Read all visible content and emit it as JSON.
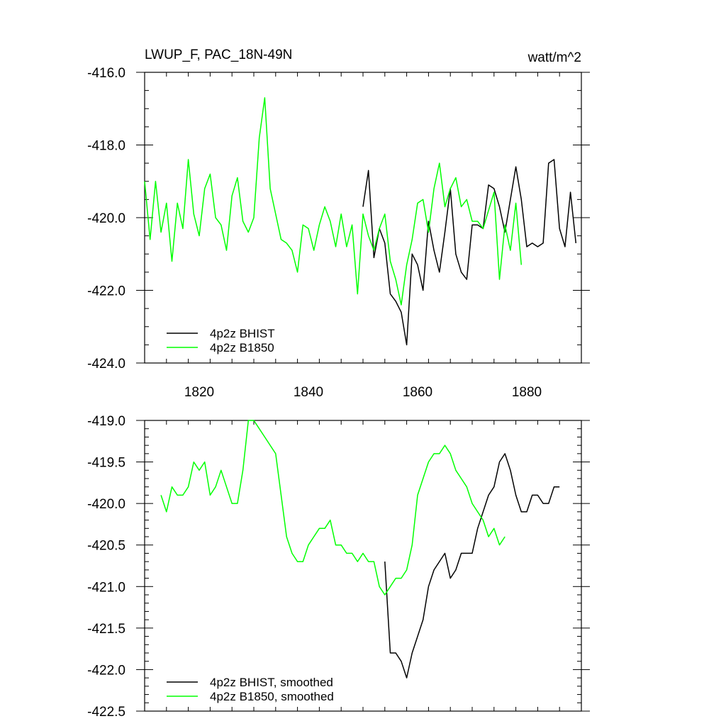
{
  "header": {
    "title": "LWUP_F, PAC_18N-49N",
    "units": "watt/m^2"
  },
  "chart_data": [
    {
      "type": "line",
      "title": "LWUP_F, PAC_18N-49N",
      "units": "watt/m^2",
      "xlim": [
        1810,
        1890
      ],
      "ylim": [
        -424.0,
        -416.0
      ],
      "x_ticks": [
        1820,
        1840,
        1860,
        1880
      ],
      "x_tick_labels": [
        "1820",
        "1840",
        "1860",
        "1880"
      ],
      "y_ticks": [
        -424.0,
        -422.0,
        -420.0,
        -418.0,
        -416.0
      ],
      "y_tick_labels": [
        "-424.0",
        "-422.0",
        "-420.0",
        "-418.0",
        "-416.0"
      ],
      "legend_position": "bottom-left",
      "series": [
        {
          "name": "4p2z BHIST",
          "color": "#000000",
          "x": [
            1850,
            1851,
            1852,
            1853,
            1854,
            1855,
            1856,
            1857,
            1858,
            1859,
            1860,
            1861,
            1862,
            1863,
            1864,
            1865,
            1866,
            1867,
            1868,
            1869,
            1870,
            1871,
            1872,
            1873,
            1874,
            1875,
            1876,
            1877,
            1878,
            1879,
            1880,
            1881,
            1882,
            1883,
            1884,
            1885,
            1886,
            1887,
            1888,
            1889
          ],
          "values": [
            -419.7,
            -418.7,
            -421.1,
            -420.3,
            -420.7,
            -422.1,
            -422.3,
            -422.6,
            -423.5,
            -421.0,
            -421.3,
            -422.0,
            -420.1,
            -420.9,
            -421.5,
            -420.4,
            -419.2,
            -421.0,
            -421.5,
            -421.7,
            -420.2,
            -420.2,
            -420.3,
            -419.1,
            -419.2,
            -419.7,
            -420.4,
            -419.5,
            -418.6,
            -419.5,
            -420.8,
            -420.7,
            -420.8,
            -420.7,
            -418.5,
            -418.4,
            -420.3,
            -420.8,
            -419.3,
            -420.7
          ]
        },
        {
          "name": "4p2z B1850",
          "color": "#00ff00",
          "x": [
            1810,
            1811,
            1812,
            1813,
            1814,
            1815,
            1816,
            1817,
            1818,
            1819,
            1820,
            1821,
            1822,
            1823,
            1824,
            1825,
            1826,
            1827,
            1828,
            1829,
            1830,
            1831,
            1832,
            1833,
            1834,
            1835,
            1836,
            1837,
            1838,
            1839,
            1840,
            1841,
            1842,
            1843,
            1844,
            1845,
            1846,
            1847,
            1848,
            1849,
            1850,
            1851,
            1852,
            1853,
            1854,
            1855,
            1856,
            1857,
            1858,
            1859,
            1860,
            1861,
            1862,
            1863,
            1864,
            1865,
            1866,
            1867,
            1868,
            1869,
            1870,
            1871,
            1872,
            1873,
            1874,
            1875,
            1876,
            1877,
            1878,
            1879
          ],
          "values": [
            -419.0,
            -420.6,
            -419.0,
            -420.4,
            -419.6,
            -421.2,
            -419.6,
            -420.3,
            -418.4,
            -419.9,
            -420.5,
            -419.2,
            -418.8,
            -420.0,
            -420.2,
            -420.9,
            -419.4,
            -418.9,
            -420.1,
            -420.4,
            -420.0,
            -417.8,
            -416.7,
            -419.2,
            -419.9,
            -420.6,
            -420.7,
            -420.9,
            -421.5,
            -420.2,
            -420.3,
            -420.9,
            -420.2,
            -419.7,
            -420.1,
            -420.8,
            -419.9,
            -420.8,
            -420.2,
            -422.1,
            -419.9,
            -420.5,
            -420.9,
            -420.3,
            -419.9,
            -421.2,
            -421.7,
            -422.4,
            -421.3,
            -420.6,
            -419.6,
            -419.5,
            -420.4,
            -419.2,
            -418.5,
            -419.7,
            -419.2,
            -418.9,
            -419.7,
            -419.5,
            -420.1,
            -420.1,
            -420.3,
            -419.8,
            -419.3,
            -421.7,
            -420.2,
            -420.9,
            -419.6,
            -421.3
          ]
        }
      ]
    },
    {
      "type": "line",
      "xlim": [
        1810,
        1890
      ],
      "ylim": [
        -422.5,
        -419.0
      ],
      "x_ticks": [
        1820,
        1840,
        1860,
        1880
      ],
      "y_ticks": [
        -422.5,
        -422.0,
        -421.5,
        -421.0,
        -420.5,
        -420.0,
        -419.5,
        -419.0
      ],
      "y_tick_labels": [
        "-422.5",
        "-422.0",
        "-421.5",
        "-421.0",
        "-420.5",
        "-420.0",
        "-419.5",
        "-419.0"
      ],
      "legend_position": "bottom-left",
      "series": [
        {
          "name": "4p2z BHIST, smoothed",
          "color": "#000000",
          "x": [
            1854,
            1855,
            1856,
            1857,
            1858,
            1859,
            1860,
            1861,
            1862,
            1863,
            1864,
            1865,
            1866,
            1867,
            1868,
            1869,
            1870,
            1871,
            1872,
            1873,
            1874,
            1875,
            1876,
            1877,
            1878,
            1879,
            1880,
            1881,
            1882,
            1883,
            1884,
            1885,
            1886
          ],
          "values": [
            -420.7,
            -421.8,
            -421.8,
            -421.9,
            -422.1,
            -421.8,
            -421.6,
            -421.4,
            -421.0,
            -420.8,
            -420.7,
            -420.6,
            -420.9,
            -420.8,
            -420.6,
            -420.6,
            -420.6,
            -420.3,
            -420.1,
            -419.9,
            -419.8,
            -419.5,
            -419.4,
            -419.6,
            -419.9,
            -420.1,
            -420.1,
            -419.9,
            -419.9,
            -420.0,
            -420.0,
            -419.8,
            -419.8
          ]
        },
        {
          "name": "4p2z B1850, smoothed",
          "color": "#00ff00",
          "x": [
            1813,
            1814,
            1815,
            1816,
            1817,
            1818,
            1819,
            1820,
            1821,
            1822,
            1823,
            1824,
            1825,
            1826,
            1827,
            1828,
            1829,
            1830,
            1831,
            1832,
            1833,
            1834,
            1835,
            1836,
            1837,
            1838,
            1839,
            1840,
            1841,
            1842,
            1843,
            1844,
            1845,
            1846,
            1847,
            1848,
            1849,
            1850,
            1851,
            1852,
            1853,
            1854,
            1855,
            1856,
            1857,
            1858,
            1859,
            1860,
            1861,
            1862,
            1863,
            1864,
            1865,
            1866,
            1867,
            1868,
            1869,
            1870,
            1871,
            1872,
            1873,
            1874,
            1875,
            1876
          ],
          "values": [
            -419.9,
            -420.1,
            -419.8,
            -419.9,
            -419.9,
            -419.8,
            -419.5,
            -419.6,
            -419.5,
            -419.9,
            -419.8,
            -419.6,
            -419.8,
            -420.0,
            -420.0,
            -419.6,
            -419.0,
            -419.0,
            -419.1,
            -419.2,
            -419.3,
            -419.4,
            -419.9,
            -420.4,
            -420.6,
            -420.7,
            -420.7,
            -420.5,
            -420.4,
            -420.3,
            -420.3,
            -420.2,
            -420.5,
            -420.5,
            -420.6,
            -420.6,
            -420.7,
            -420.6,
            -420.7,
            -420.7,
            -421.0,
            -421.1,
            -421.0,
            -420.9,
            -420.9,
            -420.8,
            -420.5,
            -419.9,
            -419.7,
            -419.5,
            -419.4,
            -419.4,
            -419.3,
            -419.4,
            -419.6,
            -419.7,
            -419.8,
            -420.0,
            -420.1,
            -420.2,
            -420.4,
            -420.3,
            -420.5,
            -420.4
          ]
        }
      ]
    }
  ]
}
